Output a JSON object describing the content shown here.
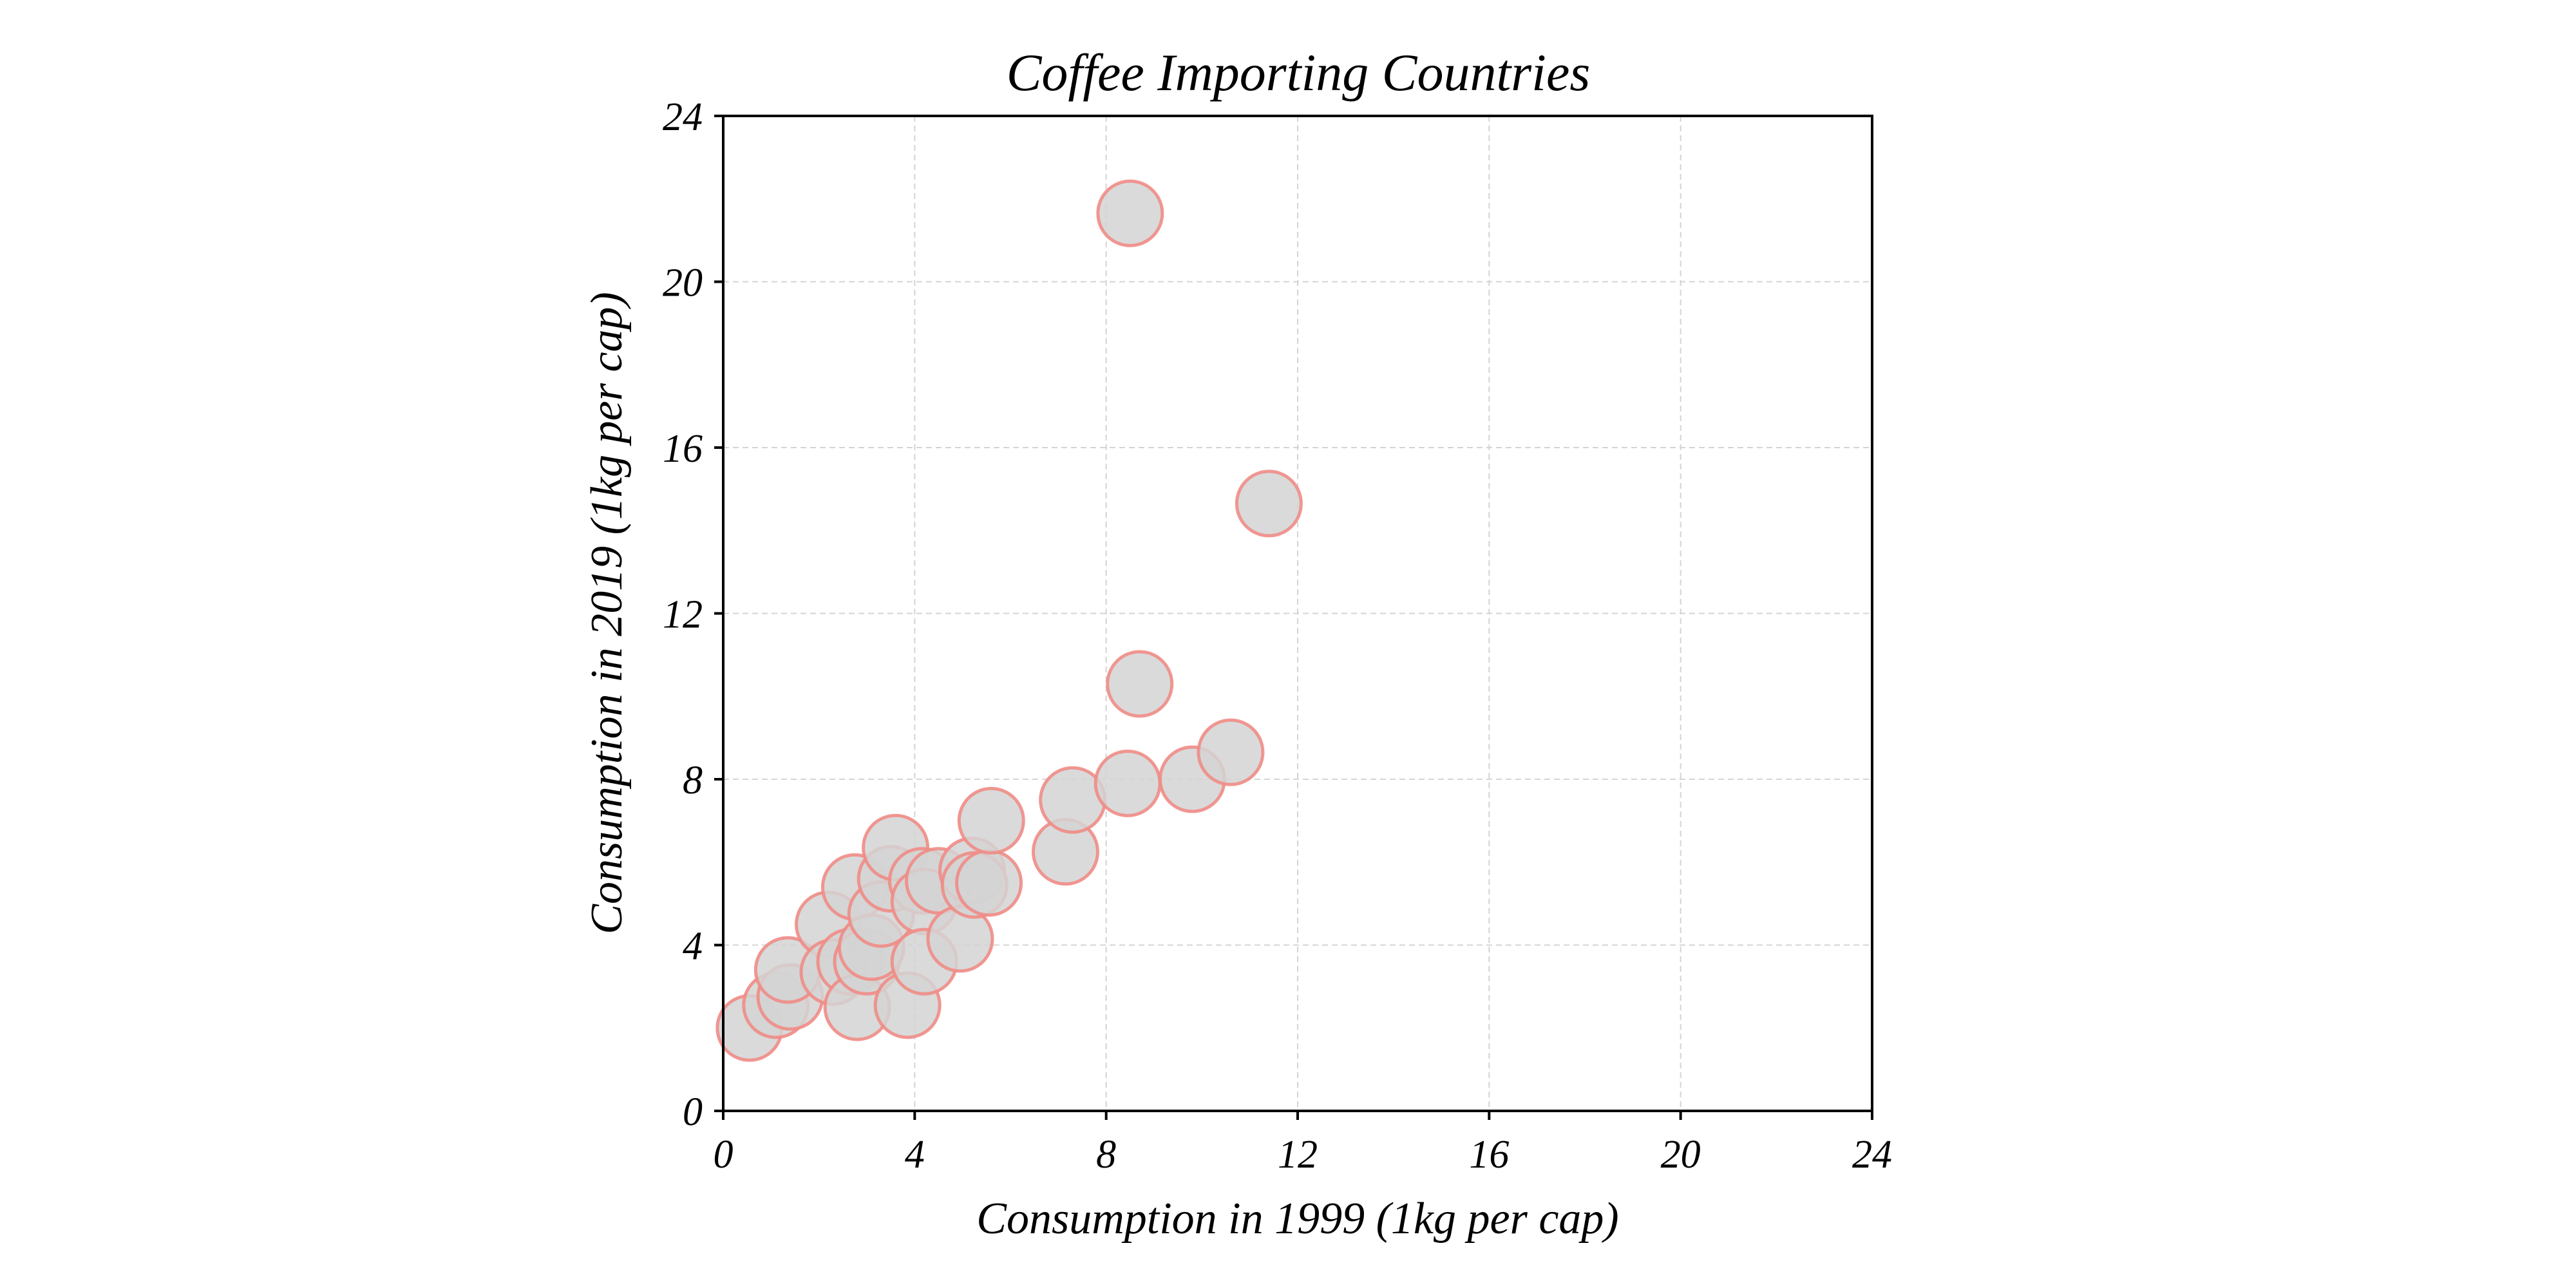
{
  "chart_data": {
    "type": "scatter",
    "title": "Coffee Importing Countries",
    "xlabel": "Consumption in 1999 (1kg per cap)",
    "ylabel": "Consumption in 2019 (1kg per cap)",
    "xlim": [
      0,
      24
    ],
    "ylim": [
      0,
      24
    ],
    "xticks": [
      "0",
      "4",
      "8",
      "12",
      "16",
      "20",
      "24"
    ],
    "yticks": [
      "0",
      "4",
      "8",
      "12",
      "16",
      "20",
      "24"
    ],
    "grid": true,
    "marker_fill": "#d3d3d3",
    "marker_edge": "#f08c86",
    "points": [
      {
        "x": 0.55,
        "y": 2.0
      },
      {
        "x": 1.1,
        "y": 2.55
      },
      {
        "x": 1.4,
        "y": 2.75
      },
      {
        "x": 1.35,
        "y": 3.4
      },
      {
        "x": 2.2,
        "y": 4.5
      },
      {
        "x": 2.3,
        "y": 3.35
      },
      {
        "x": 2.65,
        "y": 3.6
      },
      {
        "x": 2.75,
        "y": 5.4
      },
      {
        "x": 2.8,
        "y": 2.5
      },
      {
        "x": 3.0,
        "y": 3.6
      },
      {
        "x": 3.1,
        "y": 3.95
      },
      {
        "x": 3.3,
        "y": 4.75
      },
      {
        "x": 3.5,
        "y": 5.6
      },
      {
        "x": 3.6,
        "y": 6.35
      },
      {
        "x": 3.85,
        "y": 2.55
      },
      {
        "x": 4.15,
        "y": 5.55
      },
      {
        "x": 4.2,
        "y": 5.05
      },
      {
        "x": 4.2,
        "y": 3.6
      },
      {
        "x": 4.5,
        "y": 5.55
      },
      {
        "x": 4.95,
        "y": 4.15
      },
      {
        "x": 5.2,
        "y": 5.8
      },
      {
        "x": 5.25,
        "y": 5.45
      },
      {
        "x": 5.55,
        "y": 5.5
      },
      {
        "x": 5.6,
        "y": 7.0
      },
      {
        "x": 7.15,
        "y": 6.25
      },
      {
        "x": 7.3,
        "y": 7.5
      },
      {
        "x": 8.45,
        "y": 7.9
      },
      {
        "x": 8.5,
        "y": 21.65
      },
      {
        "x": 8.7,
        "y": 10.3
      },
      {
        "x": 9.8,
        "y": 8.0
      },
      {
        "x": 10.6,
        "y": 8.65
      },
      {
        "x": 11.4,
        "y": 14.65
      }
    ]
  }
}
